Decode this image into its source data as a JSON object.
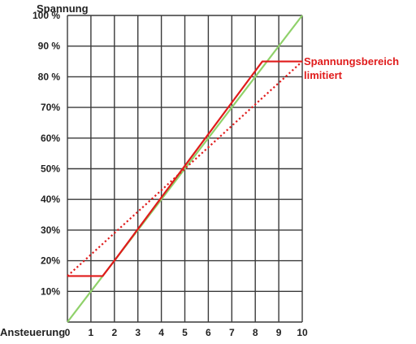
{
  "chart_data": {
    "type": "line",
    "ylabel": "Spannung",
    "xlabel": "Ansteuerung",
    "xlim": [
      0,
      10
    ],
    "ylim": [
      0,
      100
    ],
    "x_ticks": [
      "0",
      "1",
      "2",
      "3",
      "4",
      "5",
      "6",
      "7",
      "8",
      "9",
      "10"
    ],
    "y_ticks": [
      {
        "value": 10,
        "label": "10%"
      },
      {
        "value": 20,
        "label": "20%"
      },
      {
        "value": 30,
        "label": "30%"
      },
      {
        "value": 40,
        "label": "40%"
      },
      {
        "value": 50,
        "label": "50%"
      },
      {
        "value": 60,
        "label": "60%"
      },
      {
        "value": 70,
        "label": "70%"
      },
      {
        "value": 80,
        "label": "80 %"
      },
      {
        "value": 90,
        "label": "90 %"
      },
      {
        "value": 100,
        "label": "100 %"
      }
    ],
    "grid": true,
    "series": [
      {
        "style": "solid",
        "color": "#8fd16a",
        "x": [
          0,
          10
        ],
        "y": [
          0,
          100
        ]
      },
      {
        "style": "solid",
        "color": "#e01b1b",
        "x": [
          0,
          1.5,
          2,
          8.3,
          10
        ],
        "y": [
          15,
          15,
          20,
          85,
          85
        ]
      },
      {
        "style": "dotted",
        "color": "#e01b1b",
        "x": [
          0,
          10
        ],
        "y": [
          15,
          85
        ]
      }
    ],
    "annotation": {
      "lines": [
        "Spannungsbereich",
        "limitiert"
      ],
      "color": "#e01b1b"
    }
  }
}
